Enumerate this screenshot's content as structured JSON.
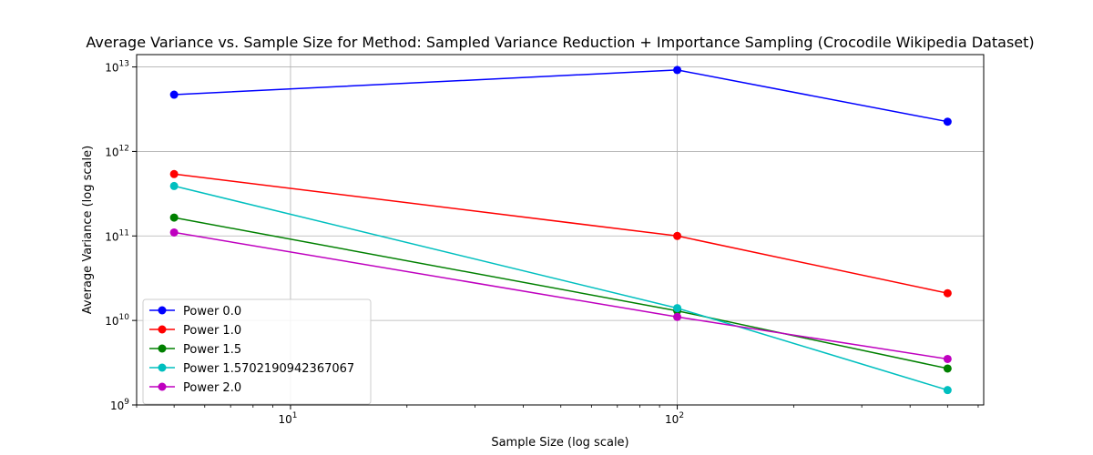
{
  "chart_data": {
    "type": "line",
    "title": "Average Variance vs. Sample Size for Method: Sampled Variance Reduction + Importance Sampling (Crocodile Wikipedia Dataset)",
    "xlabel": "Sample Size (log scale)",
    "ylabel": "Average Variance (log scale)",
    "xscale": "log",
    "yscale": "log",
    "xlim": [
      4.0,
      620
    ],
    "ylim": [
      1000000000.0,
      14000000000000.0
    ],
    "grid": true,
    "legend_position": "lower-left",
    "x_major_ticks": [
      {
        "value": 10,
        "base": "10",
        "exp": "1"
      },
      {
        "value": 100,
        "base": "10",
        "exp": "2"
      }
    ],
    "y_major_ticks": [
      {
        "value": 1000000000.0,
        "base": "10",
        "exp": "9"
      },
      {
        "value": 10000000000.0,
        "base": "10",
        "exp": "10"
      },
      {
        "value": 100000000000.0,
        "base": "10",
        "exp": "11"
      },
      {
        "value": 1000000000000.0,
        "base": "10",
        "exp": "12"
      },
      {
        "value": 10000000000000.0,
        "base": "10",
        "exp": "13"
      }
    ],
    "x": [
      5,
      100,
      500
    ],
    "series": [
      {
        "name": "Power 0.0",
        "color": "#0000ff",
        "values": [
          4700000000000.0,
          9200000000000.0,
          2250000000000.0
        ]
      },
      {
        "name": "Power 1.0",
        "color": "#ff0000",
        "values": [
          540000000000.0,
          100000000000.0,
          21000000000.0
        ]
      },
      {
        "name": "Power 1.5",
        "color": "#008000",
        "values": [
          165000000000.0,
          13000000000.0,
          2700000000.0
        ]
      },
      {
        "name": "Power 1.5702190942367067",
        "color": "#00bfbf",
        "values": [
          390000000000.0,
          14000000000.0,
          1500000000.0
        ]
      },
      {
        "name": "Power 2.0",
        "color": "#bf00bf",
        "values": [
          110000000000.0,
          11000000000.0,
          3500000000.0
        ]
      }
    ]
  }
}
